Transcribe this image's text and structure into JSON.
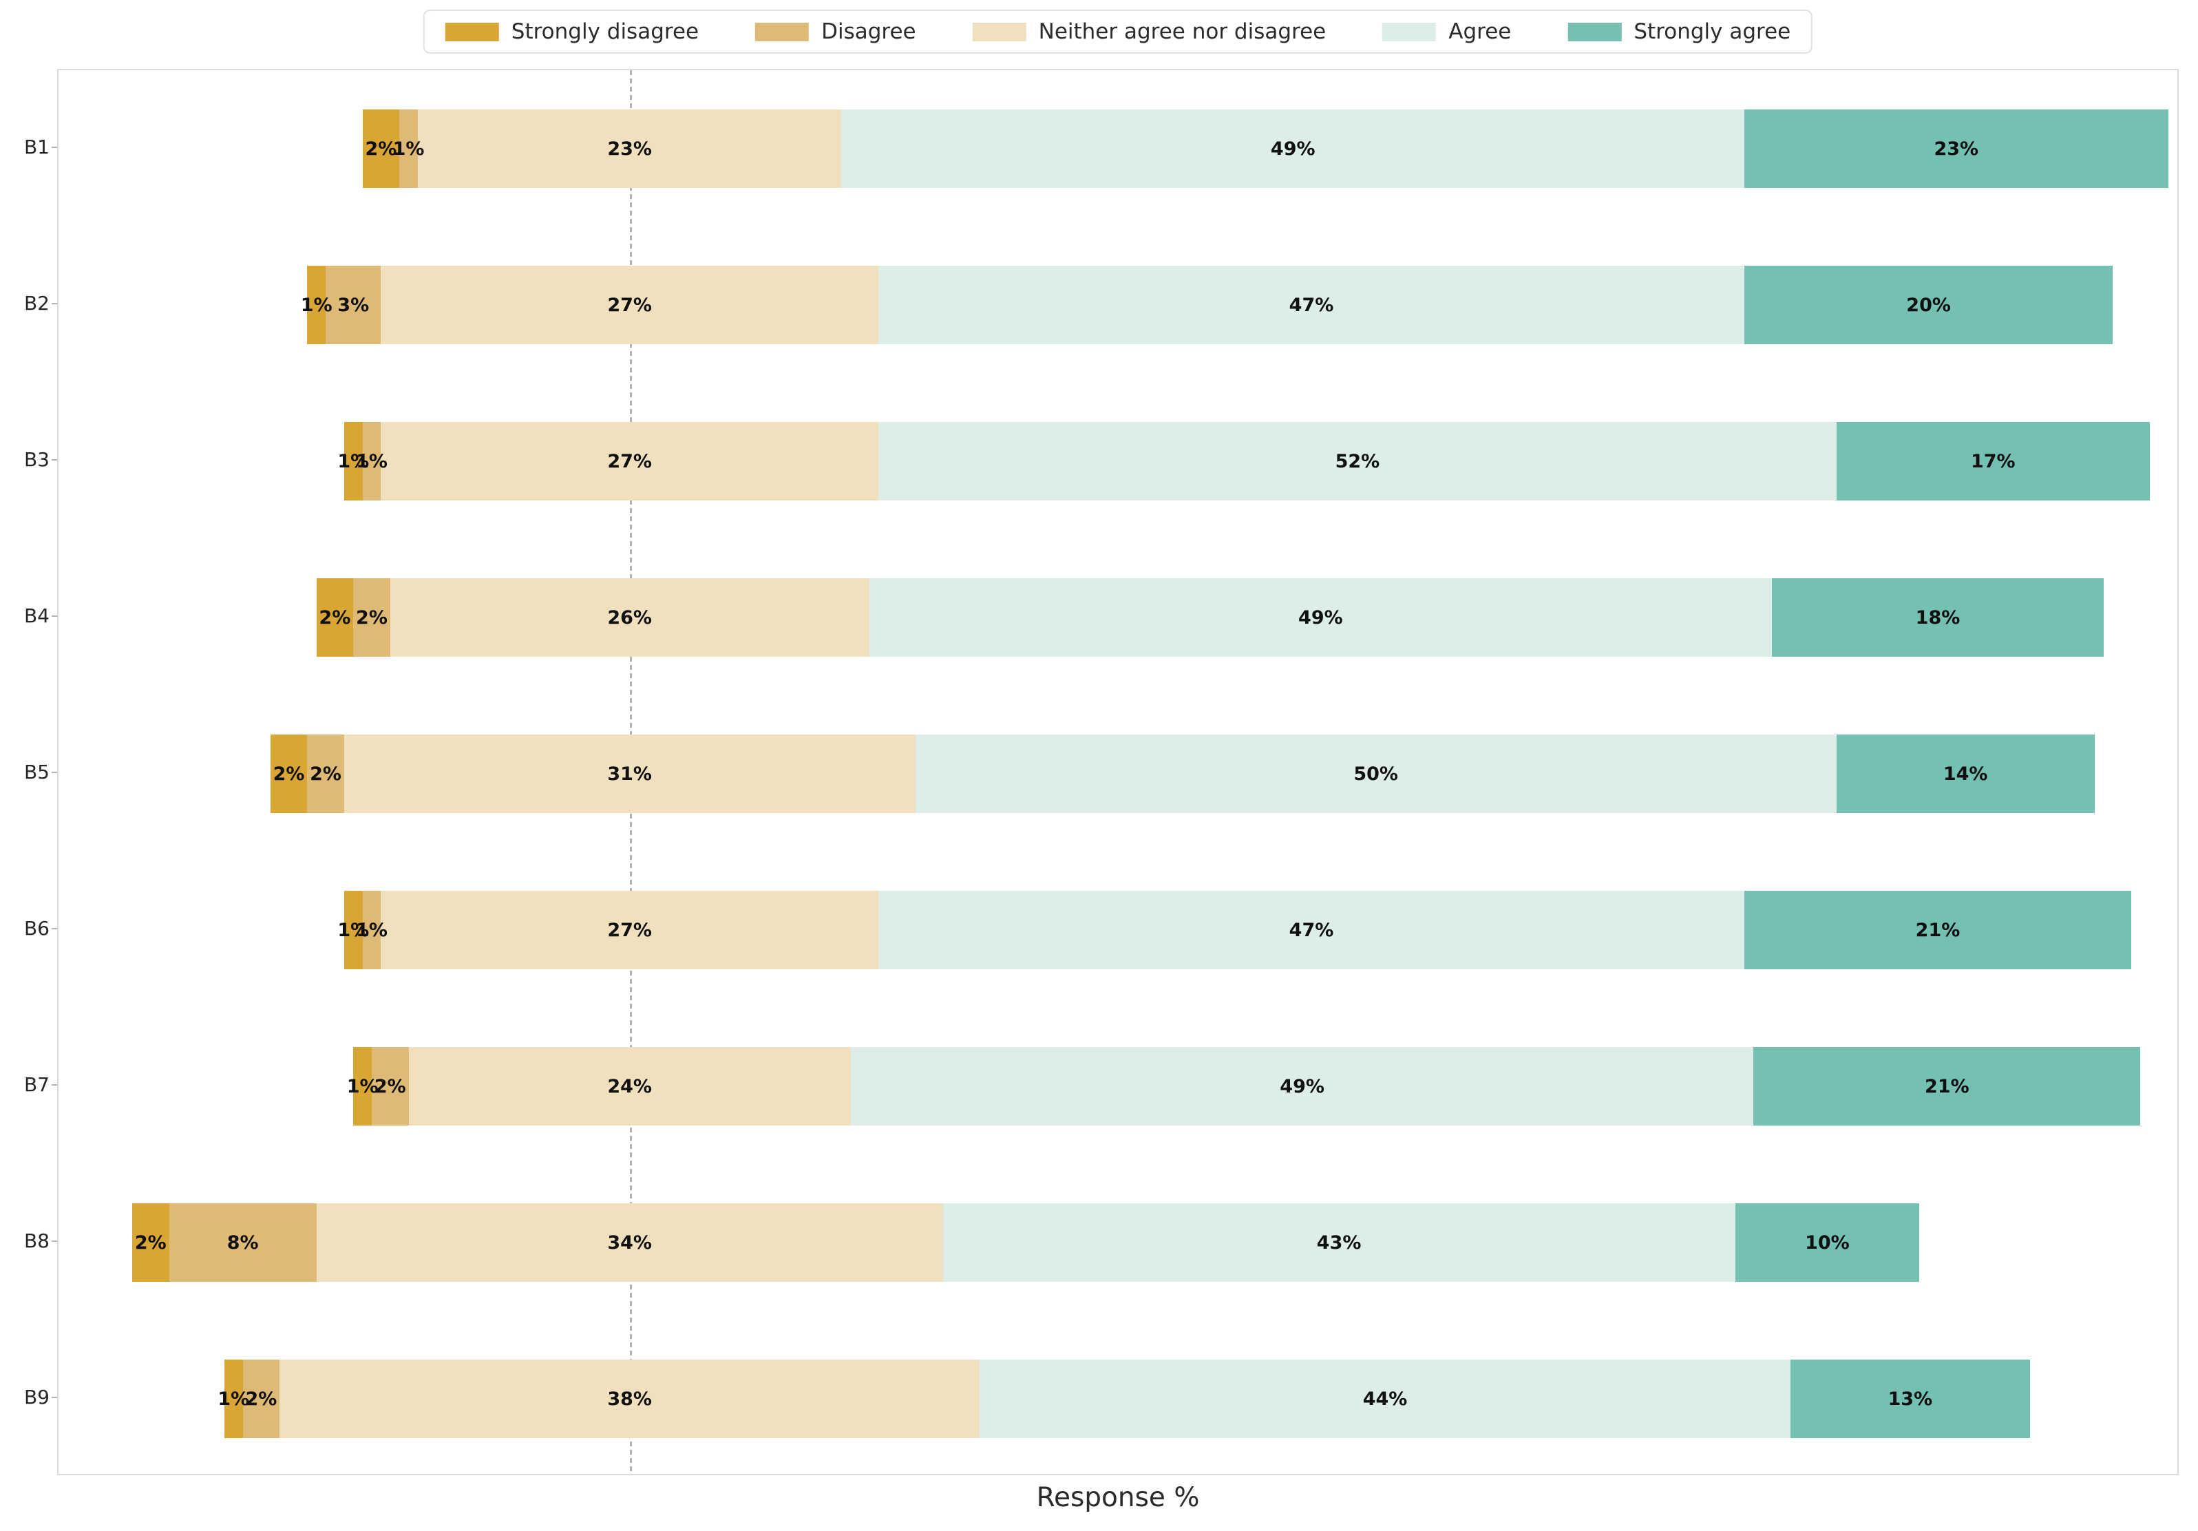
{
  "chart_data": {
    "type": "bar",
    "orientation": "horizontal",
    "stacked": true,
    "diverging": true,
    "alignment": "center-of-neutral",
    "title": "",
    "xlabel": "Response %",
    "ylabel": "",
    "x_range": [
      -31,
      84
    ],
    "zero_line_x": 0,
    "grid": false,
    "legend_position": "top",
    "value_label_suffix": "%",
    "legend": [
      "Strongly disagree",
      "Disagree",
      "Neither agree nor disagree",
      "Agree",
      "Strongly agree"
    ],
    "colors": [
      "#d9a635",
      "#deba76",
      "#f0e0bd",
      "#ddeee9",
      "#74c0b3"
    ],
    "categories": [
      "B1",
      "B2",
      "B3",
      "B4",
      "B5",
      "B6",
      "B7",
      "B8",
      "B9"
    ],
    "rows": [
      {
        "label": "B1",
        "values": [
          2,
          1,
          23,
          49,
          23
        ]
      },
      {
        "label": "B2",
        "values": [
          1,
          3,
          27,
          47,
          20
        ]
      },
      {
        "label": "B3",
        "values": [
          1,
          1,
          27,
          52,
          17
        ]
      },
      {
        "label": "B4",
        "values": [
          2,
          2,
          26,
          49,
          18
        ]
      },
      {
        "label": "B5",
        "values": [
          2,
          2,
          31,
          50,
          14
        ]
      },
      {
        "label": "B6",
        "values": [
          1,
          1,
          27,
          47,
          21
        ]
      },
      {
        "label": "B7",
        "values": [
          1,
          2,
          24,
          49,
          21
        ]
      },
      {
        "label": "B8",
        "values": [
          2,
          8,
          34,
          43,
          10
        ]
      },
      {
        "label": "B9",
        "values": [
          1,
          2,
          38,
          44,
          13
        ]
      }
    ],
    "style_colors": {
      "plot_border": "#dcdcdc",
      "zero_line": "#b5b5b5",
      "segment_label_text": "#101010",
      "axis_label_text": "#2b2b2b",
      "category_label_text": "#262626",
      "background": "#ffffff"
    }
  }
}
